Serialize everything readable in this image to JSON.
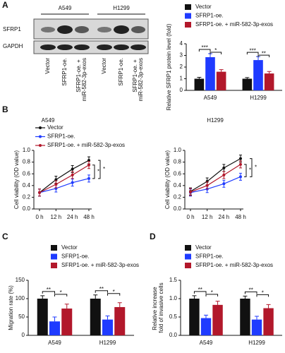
{
  "panel_labels": [
    "A",
    "B",
    "C",
    "D"
  ],
  "blot": {
    "cell_lines": [
      "A549",
      "H1299"
    ],
    "proteins": [
      "SFRP1",
      "GAPDH"
    ],
    "lanes": [
      "Vector",
      "SFRP1-oe.",
      "SFRP1-oe. + miR-582-3p-exos"
    ]
  },
  "chart_data": [
    {
      "type": "bar",
      "ylabel": "Relative SFRP1 protein level (fold)",
      "categories": [
        "A549",
        "H1299"
      ],
      "series": [
        {
          "name": "Vector",
          "color": "#111111",
          "values": [
            1.0,
            1.0
          ],
          "errors": [
            0.12,
            0.1
          ]
        },
        {
          "name": "SFRP1-oe.",
          "color": "#1f3bff",
          "values": [
            2.85,
            2.6
          ],
          "errors": [
            0.3,
            0.3
          ]
        },
        {
          "name": "SFRP1-oe. + miR-582-3p-exos",
          "color": "#b2182b",
          "values": [
            1.6,
            1.45
          ],
          "errors": [
            0.18,
            0.17
          ]
        }
      ],
      "annotations": [
        "***",
        "*",
        "***",
        "**"
      ],
      "ylim": [
        0,
        4
      ],
      "yticks": [
        0,
        1,
        2,
        3,
        4
      ]
    },
    {
      "type": "line",
      "title": "A549",
      "ylabel": "Cell viability (OD value)",
      "categories": [
        "0 h",
        "12 h",
        "24 h",
        "48 h"
      ],
      "series": [
        {
          "name": "Vector",
          "color": "#111111",
          "values": [
            0.28,
            0.5,
            0.68,
            0.83
          ]
        },
        {
          "name": "SFRP1-oe.",
          "color": "#1f3bff",
          "values": [
            0.28,
            0.35,
            0.45,
            0.52
          ]
        },
        {
          "name": "SFRP1-oe. + miR-582-3p-exos",
          "color": "#b2182b",
          "values": [
            0.28,
            0.42,
            0.58,
            0.75
          ]
        }
      ],
      "annotations": [
        "*",
        "*"
      ],
      "ylim": [
        0,
        1
      ],
      "yticks": [
        {
          "value": 0,
          "label": "0.0"
        },
        0.2,
        0.4,
        0.6,
        0.8,
        {
          "value": 1,
          "label": "1.0"
        }
      ]
    },
    {
      "type": "line",
      "title": "H1299",
      "ylabel": "Cell viability (OD value)",
      "categories": [
        "0 h",
        "12 h",
        "24 h",
        "48 h"
      ],
      "series": [
        {
          "color": "#111111",
          "values": [
            0.3,
            0.47,
            0.7,
            0.86
          ]
        },
        {
          "color": "#1f3bff",
          "values": [
            0.28,
            0.34,
            0.43,
            0.55
          ]
        },
        {
          "color": "#b2182b",
          "values": [
            0.29,
            0.4,
            0.58,
            0.76
          ]
        }
      ],
      "annotations": [
        "*",
        "*"
      ],
      "ylim": [
        0,
        1
      ],
      "yticks": [
        {
          "value": 0,
          "label": "0.0"
        },
        0.2,
        0.4,
        0.6,
        0.8,
        {
          "value": 1,
          "label": "1.0"
        }
      ]
    },
    {
      "type": "bar",
      "ylabel": "Migration rate (%)",
      "categories": [
        "A549",
        "H1299"
      ],
      "series": [
        {
          "name": "Vector",
          "color": "#111111",
          "values": [
            100,
            100
          ],
          "errors": [
            8,
            10
          ]
        },
        {
          "name": "SFRP1-oe.",
          "color": "#1f3bff",
          "values": [
            38,
            43
          ],
          "errors": [
            12,
            10
          ]
        },
        {
          "name": "SFRP1-oe. + miR-582-3p-exos",
          "color": "#b2182b",
          "values": [
            73,
            77
          ],
          "errors": [
            12,
            12
          ]
        }
      ],
      "annotations": [
        "**",
        "*",
        "**",
        "*"
      ],
      "ylim": [
        0,
        150
      ],
      "yticks": [
        0,
        50,
        100,
        150
      ]
    },
    {
      "type": "bar",
      "ylabel": "Relative increase fold of invasive cells",
      "categories": [
        "A549",
        "H1299"
      ],
      "series": [
        {
          "name": "Vector",
          "color": "#111111",
          "values": [
            1.0,
            1.0
          ],
          "errors": [
            0.08,
            0.07
          ]
        },
        {
          "name": "SFRP1-oe.",
          "color": "#1f3bff",
          "values": [
            0.47,
            0.43
          ],
          "errors": [
            0.08,
            0.09
          ]
        },
        {
          "name": "SFRP1-oe. + miR-582-3p-exos",
          "color": "#b2182b",
          "values": [
            0.83,
            0.74
          ],
          "errors": [
            0.1,
            0.1
          ]
        }
      ],
      "annotations": [
        "**",
        "*",
        "**",
        "*"
      ],
      "ylim": [
        0,
        1.5
      ],
      "yticks": [
        {
          "value": 0,
          "label": "0.0"
        },
        0.5,
        {
          "value": 1,
          "label": "1.0"
        },
        1.5
      ]
    }
  ]
}
